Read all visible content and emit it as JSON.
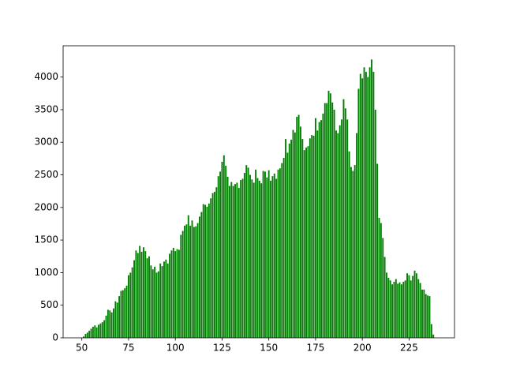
{
  "chart_data": {
    "type": "bar",
    "color": "#008000",
    "bar_width": 0.8,
    "x": [
      51,
      52,
      53,
      54,
      55,
      56,
      57,
      58,
      59,
      60,
      61,
      62,
      63,
      64,
      65,
      66,
      67,
      68,
      69,
      70,
      71,
      72,
      73,
      74,
      75,
      76,
      77,
      78,
      79,
      80,
      81,
      82,
      83,
      84,
      85,
      86,
      87,
      88,
      89,
      90,
      91,
      92,
      93,
      94,
      95,
      96,
      97,
      98,
      99,
      100,
      101,
      102,
      103,
      104,
      105,
      106,
      107,
      108,
      109,
      110,
      111,
      112,
      113,
      114,
      115,
      116,
      117,
      118,
      119,
      120,
      121,
      122,
      123,
      124,
      125,
      126,
      127,
      128,
      129,
      130,
      131,
      132,
      133,
      134,
      135,
      136,
      137,
      138,
      139,
      140,
      141,
      142,
      143,
      144,
      145,
      146,
      147,
      148,
      149,
      150,
      151,
      152,
      153,
      154,
      155,
      156,
      157,
      158,
      159,
      160,
      161,
      162,
      163,
      164,
      165,
      166,
      167,
      168,
      169,
      170,
      171,
      172,
      173,
      174,
      175,
      176,
      177,
      178,
      179,
      180,
      181,
      182,
      183,
      184,
      185,
      186,
      187,
      188,
      189,
      190,
      191,
      192,
      193,
      194,
      195,
      196,
      197,
      198,
      199,
      200,
      201,
      202,
      203,
      204,
      205,
      206,
      207,
      208,
      209,
      210,
      211,
      212,
      213,
      214,
      215,
      216,
      217,
      218,
      219,
      220,
      221,
      222,
      223,
      224,
      225,
      226,
      227,
      228,
      229,
      230,
      231,
      232,
      233,
      234,
      235,
      236,
      237,
      238
    ],
    "values": [
      20,
      60,
      80,
      110,
      140,
      170,
      190,
      160,
      200,
      220,
      240,
      270,
      340,
      430,
      420,
      390,
      450,
      560,
      540,
      640,
      720,
      730,
      760,
      800,
      960,
      1000,
      1080,
      1190,
      1340,
      1300,
      1410,
      1320,
      1390,
      1330,
      1220,
      1250,
      1110,
      1050,
      1090,
      1000,
      1020,
      1140,
      1100,
      1170,
      1200,
      1140,
      1290,
      1340,
      1380,
      1330,
      1360,
      1350,
      1580,
      1640,
      1720,
      1740,
      1880,
      1720,
      1800,
      1700,
      1710,
      1760,
      1860,
      1930,
      2050,
      2040,
      2010,
      2060,
      2140,
      2220,
      2240,
      2310,
      2480,
      2550,
      2700,
      2800,
      2640,
      2470,
      2330,
      2390,
      2330,
      2360,
      2380,
      2300,
      2420,
      2440,
      2530,
      2650,
      2610,
      2500,
      2430,
      2380,
      2580,
      2450,
      2410,
      2370,
      2560,
      2550,
      2460,
      2570,
      2410,
      2480,
      2520,
      2440,
      2580,
      2600,
      2680,
      2760,
      3050,
      2840,
      2980,
      3040,
      3190,
      3150,
      3390,
      3420,
      3240,
      3050,
      2880,
      2920,
      2940,
      3060,
      3110,
      3100,
      3370,
      3180,
      3310,
      3340,
      3440,
      3600,
      3600,
      3790,
      3750,
      3610,
      3500,
      3180,
      3140,
      3260,
      3350,
      3660,
      3520,
      3350,
      2860,
      2620,
      2560,
      2650,
      3140,
      3820,
      4050,
      3980,
      4150,
      4080,
      4000,
      4150,
      4270,
      4080,
      3500,
      2670,
      1840,
      1760,
      1530,
      1240,
      1000,
      920,
      880,
      820,
      860,
      900,
      830,
      850,
      820,
      860,
      880,
      990,
      960,
      880,
      950,
      1030,
      990,
      900,
      840,
      740,
      740,
      670,
      650,
      640,
      210,
      50
    ],
    "xlim": [
      40,
      249.3
    ],
    "ylim": [
      0,
      4480
    ],
    "xticks": [
      50,
      75,
      100,
      125,
      150,
      175,
      200,
      225
    ],
    "yticks": [
      0,
      500,
      1000,
      1500,
      2000,
      2500,
      3000,
      3500,
      4000
    ]
  }
}
